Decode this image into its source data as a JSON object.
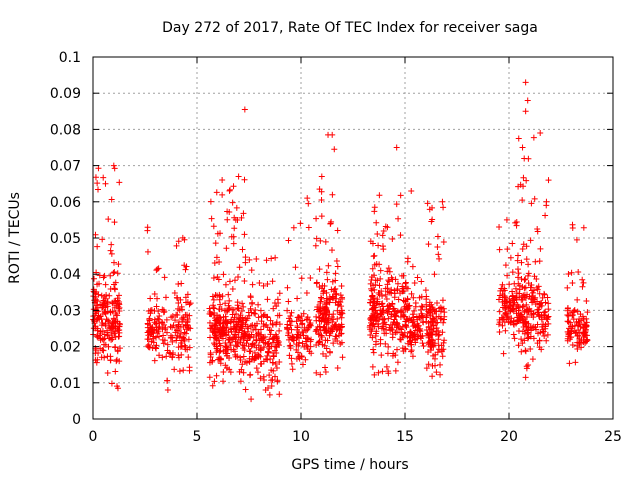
{
  "chart_data": {
    "type": "scatter",
    "title": "Day 272 of 2017, Rate Of TEC Index for receiver saga",
    "xlabel": "GPS time / hours",
    "ylabel": "ROTI / TECUs",
    "xlim": [
      0,
      25
    ],
    "ylim": [
      0,
      0.1
    ],
    "xticks": [
      "0",
      "5",
      "10",
      "15",
      "20",
      "25"
    ],
    "yticks": [
      "0",
      "0.01",
      "0.02",
      "0.03",
      "0.04",
      "0.05",
      "0.06",
      "0.07",
      "0.08",
      "0.09",
      "0.1"
    ],
    "grid": true,
    "marker": "+",
    "color": "#ff0000",
    "series": [
      {
        "clusters": [
          {
            "x": [
              0.0,
              1.3
            ],
            "y": [
              0.008,
              0.07
            ],
            "center": 0.028,
            "n": 220
          },
          {
            "x": [
              2.6,
              3.2
            ],
            "y": [
              0.015,
              0.056
            ],
            "center": 0.025,
            "n": 70
          },
          {
            "x": [
              3.3,
              4.0
            ],
            "y": [
              0.008,
              0.043
            ],
            "center": 0.023,
            "n": 45
          },
          {
            "x": [
              4.0,
              4.7
            ],
            "y": [
              0.012,
              0.054
            ],
            "center": 0.026,
            "n": 80
          },
          {
            "x": [
              5.6,
              7.3
            ],
            "y": [
              0.009,
              0.067
            ],
            "center": 0.024,
            "n": 300
          },
          {
            "x": [
              7.3,
              9.0
            ],
            "y": [
              0.006,
              0.045
            ],
            "center": 0.022,
            "n": 200
          },
          {
            "x": [
              9.3,
              10.5
            ],
            "y": [
              0.012,
              0.061
            ],
            "center": 0.024,
            "n": 110
          },
          {
            "x": [
              10.7,
              12.0
            ],
            "y": [
              0.01,
              0.067
            ],
            "center": 0.028,
            "n": 200
          },
          {
            "x": [
              13.3,
              15.2
            ],
            "y": [
              0.012,
              0.064
            ],
            "center": 0.03,
            "n": 280
          },
          {
            "x": [
              15.2,
              15.9
            ],
            "y": [
              0.015,
              0.046
            ],
            "center": 0.026,
            "n": 80
          },
          {
            "x": [
              16.0,
              16.9
            ],
            "y": [
              0.011,
              0.06
            ],
            "center": 0.025,
            "n": 130
          },
          {
            "x": [
              19.5,
              20.4
            ],
            "y": [
              0.018,
              0.055
            ],
            "center": 0.03,
            "n": 100
          },
          {
            "x": [
              20.4,
              21.5
            ],
            "y": [
              0.011,
              0.079
            ],
            "center": 0.03,
            "n": 170
          },
          {
            "x": [
              21.5,
              21.9
            ],
            "y": [
              0.018,
              0.066
            ],
            "center": 0.028,
            "n": 40
          },
          {
            "x": [
              22.8,
              23.8
            ],
            "y": [
              0.015,
              0.054
            ],
            "center": 0.025,
            "n": 110
          }
        ],
        "points": [
          [
            7.3,
            0.0855
          ],
          [
            11.3,
            0.0785
          ],
          [
            11.5,
            0.0785
          ],
          [
            11.6,
            0.0745
          ],
          [
            14.6,
            0.075
          ],
          [
            20.8,
            0.093
          ],
          [
            20.9,
            0.088
          ],
          [
            20.8,
            0.085
          ],
          [
            21.5,
            0.079
          ],
          [
            1.0,
            0.07
          ],
          [
            11.0,
            0.067
          ],
          [
            21.9,
            0.066
          ],
          [
            7.0,
            0.067
          ],
          [
            0.6,
            0.065
          ],
          [
            15.3,
            0.063
          ],
          [
            10.3,
            0.061
          ],
          [
            16.8,
            0.06
          ],
          [
            19.9,
            0.055
          ],
          [
            21.8,
            0.06
          ],
          [
            7.6,
            0.0055
          ],
          [
            3.6,
            0.008
          ],
          [
            1.2,
            0.0085
          ],
          [
            20.8,
            0.0115
          ],
          [
            8.3,
            0.008
          ]
        ]
      }
    ]
  }
}
